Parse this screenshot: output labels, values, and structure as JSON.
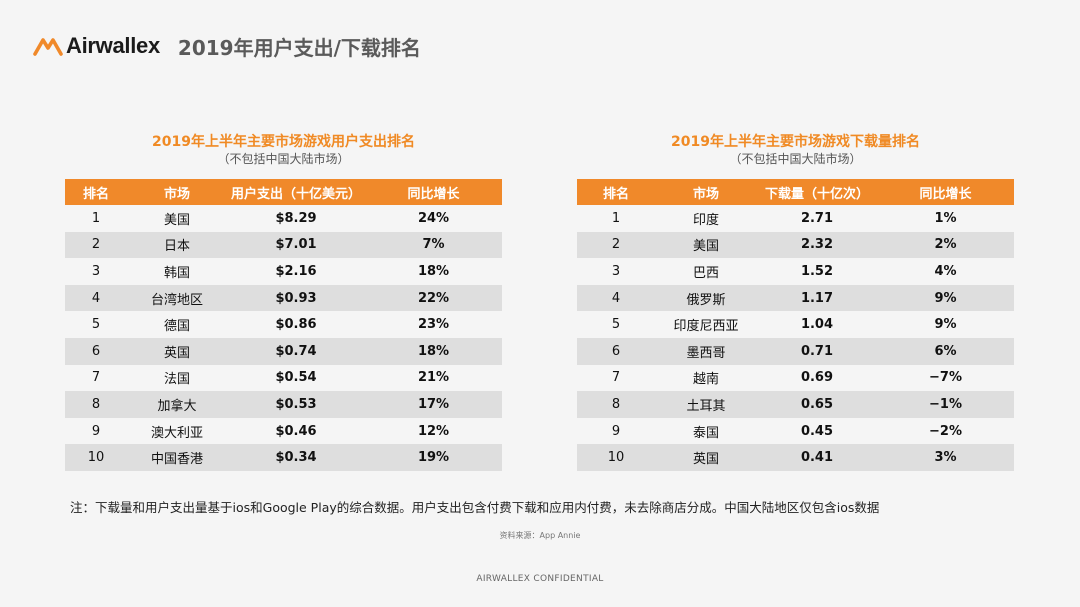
{
  "header": {
    "logo_text": "Airwallex",
    "title": "2019年用户支出/下载排名",
    "brand_color": "#f0892a"
  },
  "spending_table": {
    "title": "2019年上半年主要市场游戏用户支出排名",
    "subtitle": "（不包括中国大陆市场）",
    "columns": [
      "排名",
      "市场",
      "用户支出（十亿美元）",
      "同比增长"
    ],
    "rows": [
      [
        "1",
        "美国",
        "$8.29",
        "24%"
      ],
      [
        "2",
        "日本",
        "$7.01",
        "7%"
      ],
      [
        "3",
        "韩国",
        "$2.16",
        "18%"
      ],
      [
        "4",
        "台湾地区",
        "$0.93",
        "22%"
      ],
      [
        "5",
        "德国",
        "$0.86",
        "23%"
      ],
      [
        "6",
        "英国",
        "$0.74",
        "18%"
      ],
      [
        "7",
        "法国",
        "$0.54",
        "21%"
      ],
      [
        "8",
        "加拿大",
        "$0.53",
        "17%"
      ],
      [
        "9",
        "澳大利亚",
        "$0.46",
        "12%"
      ],
      [
        "10",
        "中国香港",
        "$0.34",
        "19%"
      ]
    ]
  },
  "downloads_table": {
    "title": "2019年上半年主要市场游戏下载量排名",
    "subtitle": "（不包括中国大陆市场）",
    "columns": [
      "排名",
      "市场",
      "下载量（十亿次）",
      "同比增长"
    ],
    "rows": [
      [
        "1",
        "印度",
        "2.71",
        "1%"
      ],
      [
        "2",
        "美国",
        "2.32",
        "2%"
      ],
      [
        "3",
        "巴西",
        "1.52",
        "4%"
      ],
      [
        "4",
        "俄罗斯",
        "1.17",
        "9%"
      ],
      [
        "5",
        "印度尼西亚",
        "1.04",
        "9%"
      ],
      [
        "6",
        "墨西哥",
        "0.71",
        "6%"
      ],
      [
        "7",
        "越南",
        "0.69",
        "−7%"
      ],
      [
        "8",
        "土耳其",
        "0.65",
        "−1%"
      ],
      [
        "9",
        "泰国",
        "0.45",
        "−2%"
      ],
      [
        "10",
        "英国",
        "0.41",
        "3%"
      ]
    ]
  },
  "note": "注：下载量和用户支出量基于ios和Google Play的综合数据。用户支出包含付费下载和应用内付费，未去除商店分成。中国大陆地区仅包含ios数据",
  "source": "资料来源：App Annie",
  "footer": "AIRWALLEX CONFIDENTIAL"
}
